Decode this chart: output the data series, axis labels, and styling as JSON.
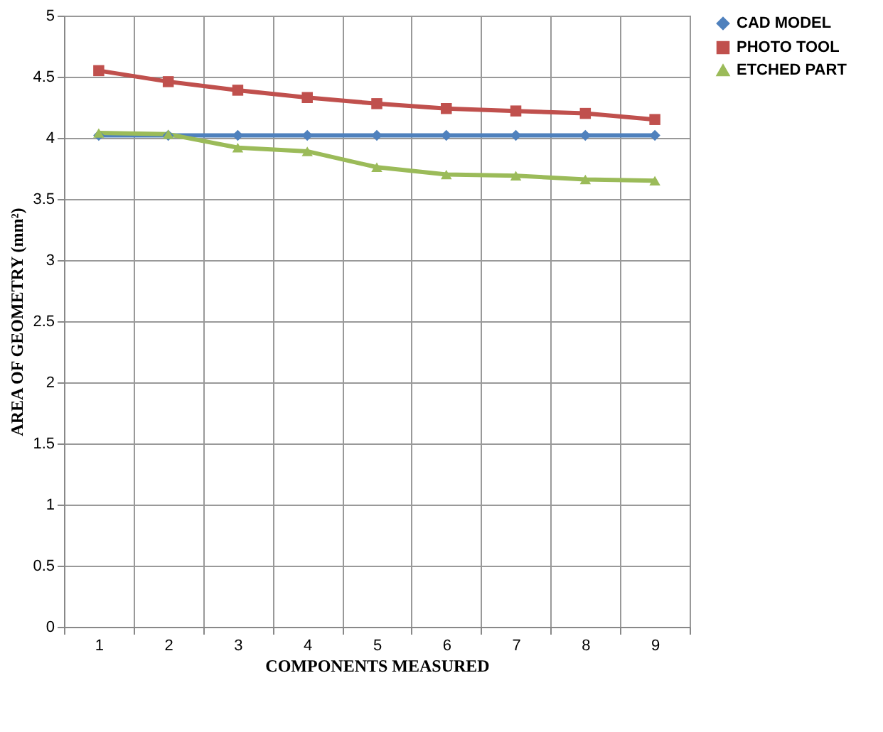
{
  "chart_data": {
    "type": "line",
    "xlabel": "COMPONENTS MEASURED",
    "ylabel": "AREA OF GEOMETRY (mm²)",
    "categories": [
      "1",
      "2",
      "3",
      "4",
      "5",
      "6",
      "7",
      "8",
      "9"
    ],
    "ylim": [
      0,
      5
    ],
    "yticks": [
      0,
      0.5,
      1,
      1.5,
      2,
      2.5,
      3,
      3.5,
      4,
      4.5,
      5
    ],
    "grid": true,
    "legend": "right",
    "series": [
      {
        "name": "CAD MODEL",
        "color": "#4f81bd",
        "marker": "diamond",
        "values": [
          4.02,
          4.02,
          4.02,
          4.02,
          4.02,
          4.02,
          4.02,
          4.02,
          4.02
        ]
      },
      {
        "name": "PHOTO TOOL",
        "color": "#c0504d",
        "marker": "square",
        "values": [
          4.55,
          4.46,
          4.39,
          4.33,
          4.28,
          4.24,
          4.22,
          4.2,
          4.15
        ]
      },
      {
        "name": "ETCHED PART",
        "color": "#9bbb59",
        "marker": "triangle",
        "values": [
          4.04,
          4.03,
          3.92,
          3.89,
          3.76,
          3.7,
          3.69,
          3.66,
          3.65
        ]
      }
    ]
  }
}
